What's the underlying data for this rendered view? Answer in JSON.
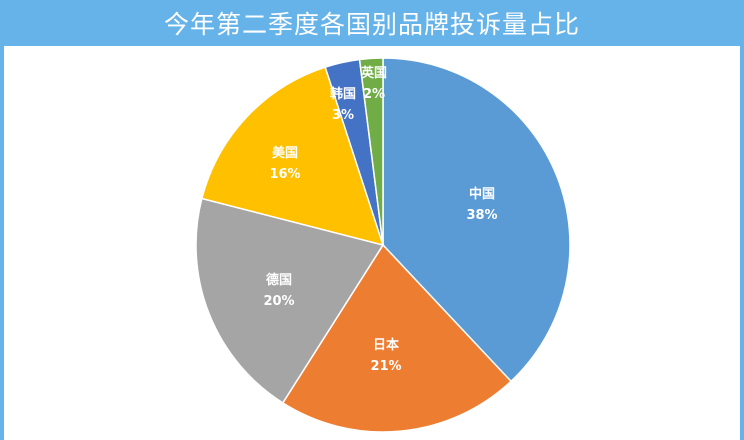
{
  "chart_data": {
    "type": "pie",
    "title": "今年第二季度各国别品牌投诉量占比",
    "categories": [
      "中国",
      "日本",
      "德国",
      "美国",
      "韩国",
      "英国"
    ],
    "values": [
      38,
      21,
      20,
      16,
      3,
      2
    ],
    "value_labels": [
      "38%",
      "21%",
      "20%",
      "16%",
      "3%",
      "2%"
    ],
    "colors": [
      "#5b9bd5",
      "#ed7d31",
      "#a5a5a5",
      "#ffc000",
      "#4472c4",
      "#70ad47"
    ],
    "start_angle_deg": 0,
    "direction": "clockwise",
    "label_position": "inside"
  },
  "theme": {
    "frame_color": "#66b3e9",
    "title_color": "#ffffff",
    "background": "#ffffff",
    "label_color": "#ffffff"
  }
}
